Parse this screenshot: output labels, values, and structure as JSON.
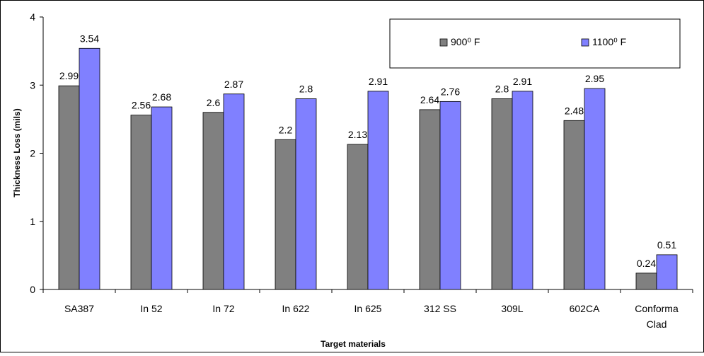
{
  "chart_data": {
    "type": "bar",
    "title": "",
    "xlabel": "Target materials",
    "ylabel": "Thickness Loss (mils)",
    "ylim": [
      0,
      4
    ],
    "yticks": [
      "0",
      "1",
      "2",
      "3",
      "4"
    ],
    "grid": false,
    "legend_position": "top-right",
    "categories": [
      "SA387",
      "In 52",
      "In 72",
      "In 622",
      "In 625",
      "312 SS",
      "309L",
      "602CA",
      [
        "Conforma",
        "Clad"
      ]
    ],
    "series": [
      {
        "name": "900⁰ F",
        "color": "#808080",
        "values": [
          2.99,
          2.56,
          2.6,
          2.2,
          2.13,
          2.64,
          2.8,
          2.48,
          0.24
        ],
        "labels": [
          "2.99",
          "2.56",
          "2.6",
          "2.2",
          "2.13",
          "2.64",
          "2.8",
          "2.48",
          "0.24"
        ]
      },
      {
        "name": "1100⁰ F",
        "color": "#8080ff",
        "values": [
          3.54,
          2.68,
          2.87,
          2.8,
          2.91,
          2.76,
          2.91,
          2.95,
          0.51
        ],
        "labels": [
          "3.54",
          "2.68",
          "2.87",
          "2.8",
          "2.91",
          "2.76",
          "2.91",
          "2.95",
          "0.51"
        ]
      }
    ]
  }
}
